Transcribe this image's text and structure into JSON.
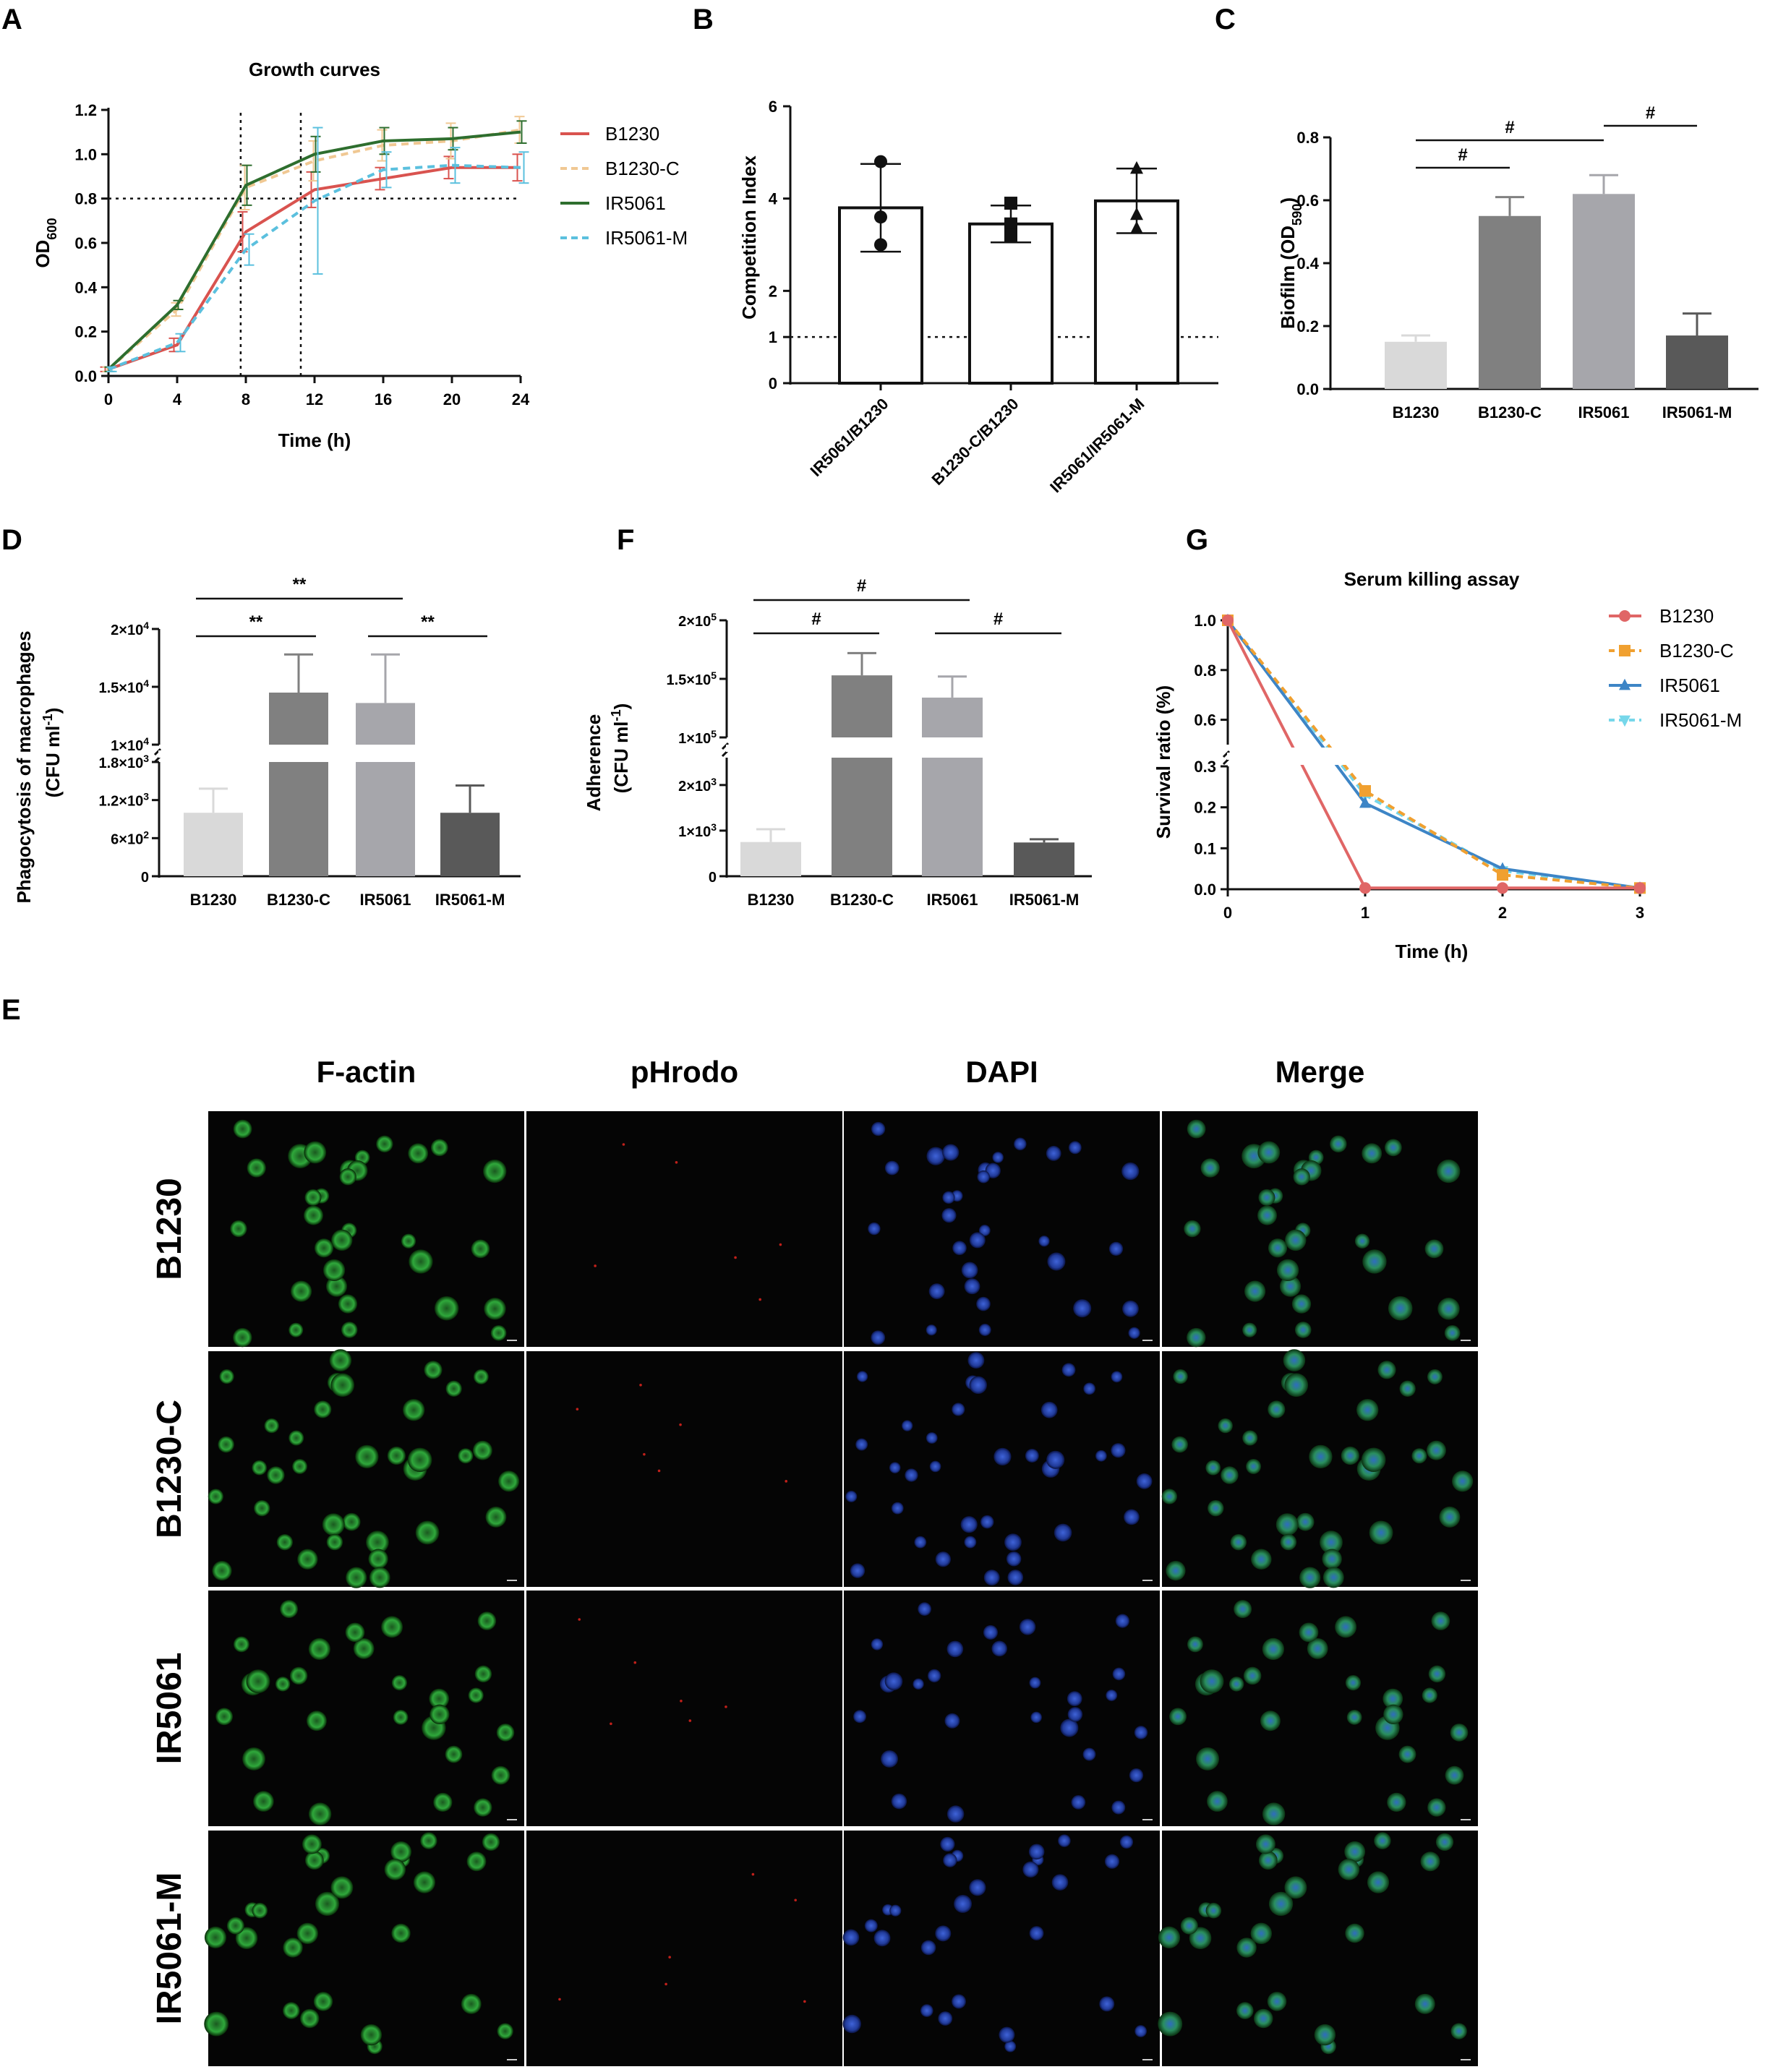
{
  "panels": {
    "A": {
      "label": "A"
    },
    "B": {
      "label": "B"
    },
    "C": {
      "label": "C"
    },
    "D": {
      "label": "D"
    },
    "E": {
      "label": "E"
    },
    "F": {
      "label": "F"
    },
    "G": {
      "label": "G"
    }
  },
  "colors": {
    "B1230": "#d9534f",
    "B1230-C": "#f0c893",
    "IR5061": "#2e6e2e",
    "IR5061-M": "#5bc0de",
    "serum_B1230": "#e06666",
    "serum_B1230-C": "#f0a030",
    "serum_IR5061": "#3d85c6",
    "serum_IR5061-M": "#76d7ea",
    "bar_B1230": "#d9d9d9",
    "bar_B1230-C": "#808080",
    "bar_IR5061": "#a6a6ab",
    "bar_IR5061-M": "#595959"
  },
  "chart_data": [
    {
      "id": "A",
      "type": "line",
      "title": "Growth curves",
      "xlabel": "Time (h)",
      "ylabel": "OD",
      "ylabel_sub": "600",
      "xlim": [
        0,
        24
      ],
      "ylim": [
        0,
        1.2
      ],
      "xticks": [
        "0",
        "4",
        "8",
        "12",
        "16",
        "20",
        "24"
      ],
      "yticks": [
        "0.0",
        "0.2",
        "0.4",
        "0.6",
        "0.8",
        "1.0",
        "1.2"
      ],
      "reference_lines": {
        "y": 0.8,
        "x": [
          7.7,
          11.2
        ]
      },
      "legend_position": "right",
      "x": [
        0,
        4,
        8,
        12,
        16,
        20,
        24
      ],
      "series": [
        {
          "name": "B1230",
          "values": [
            0.03,
            0.14,
            0.65,
            0.84,
            0.89,
            0.94,
            0.94
          ],
          "err": [
            0.01,
            0.03,
            0.09,
            0.08,
            0.05,
            0.05,
            0.06
          ]
        },
        {
          "name": "B1230-C",
          "values": [
            0.03,
            0.3,
            0.85,
            0.97,
            1.04,
            1.06,
            1.11
          ],
          "err": [
            0.01,
            0.03,
            0.1,
            0.09,
            0.07,
            0.08,
            0.06
          ]
        },
        {
          "name": "IR5061",
          "values": [
            0.03,
            0.32,
            0.86,
            1.0,
            1.06,
            1.07,
            1.1
          ],
          "err": [
            0.01,
            0.02,
            0.09,
            0.08,
            0.06,
            0.05,
            0.05
          ]
        },
        {
          "name": "IR5061-M",
          "values": [
            0.03,
            0.15,
            0.57,
            0.79,
            0.93,
            0.95,
            0.94
          ],
          "err": [
            0.01,
            0.04,
            0.07,
            0.33,
            0.08,
            0.08,
            0.07
          ]
        }
      ]
    },
    {
      "id": "B",
      "type": "bar",
      "ylabel": "Competition Index",
      "categories": [
        "IR5061/B1230",
        "B1230-C/B1230",
        "IR5061/IR5061-M"
      ],
      "values": [
        3.8,
        3.45,
        3.95
      ],
      "err": [
        0.95,
        0.4,
        0.7
      ],
      "points": [
        [
          4.8,
          3.0,
          3.6
        ],
        [
          3.9,
          3.45,
          3.2
        ],
        [
          4.65,
          3.65,
          3.35
        ]
      ],
      "markers": [
        "circle",
        "square",
        "triangle"
      ],
      "yticks": [
        "0",
        "1",
        "2",
        "4",
        "6"
      ],
      "reference_lines": {
        "y": 1
      },
      "ylim": [
        0,
        6
      ]
    },
    {
      "id": "C",
      "type": "bar",
      "ylabel": "Biofilm (OD",
      "ylabel_sub": "590",
      "ylabel_close": ")",
      "categories": [
        "B1230",
        "B1230-C",
        "IR5061",
        "IR5061-M"
      ],
      "values": [
        0.15,
        0.55,
        0.62,
        0.17
      ],
      "err": [
        0.02,
        0.06,
        0.06,
        0.07
      ],
      "yticks": [
        "0.0",
        "0.2",
        "0.4",
        "0.6",
        "0.8"
      ],
      "ylim": [
        0,
        0.8
      ],
      "significance": [
        {
          "from": 0,
          "to": 1,
          "label": "#"
        },
        {
          "from": 0,
          "to": 2,
          "label": "#"
        },
        {
          "from": 2,
          "to": 3,
          "label": "#"
        }
      ]
    },
    {
      "id": "D",
      "type": "bar",
      "ylabel": "Phagocytosis of macrophages",
      "ylabel2": "(CFU ml",
      "ylabel2_sup": "-1",
      "ylabel2_close": ")",
      "categories": [
        "B1230",
        "B1230-C",
        "IR5061",
        "IR5061-M"
      ],
      "values": [
        1000,
        14500,
        13600,
        1000
      ],
      "err": [
        380,
        3300,
        4200,
        430
      ],
      "broken_axis": {
        "lower": [
          0,
          1800
        ],
        "upper": [
          10000,
          20000
        ]
      },
      "yticks_lower": [
        "0",
        "6×10",
        "1.2×10",
        "1.8×10"
      ],
      "yticks_lower_exp": [
        "",
        "2",
        "3",
        "3"
      ],
      "yticks_upper": [
        "1×10",
        "1.5×10",
        "2×10"
      ],
      "yticks_upper_exp": [
        "4",
        "4",
        "4"
      ],
      "significance": [
        {
          "from": 0,
          "to": 1,
          "label": "**"
        },
        {
          "from": 0,
          "to": 2,
          "label": "**"
        },
        {
          "from": 2,
          "to": 3,
          "label": "**"
        }
      ]
    },
    {
      "id": "F",
      "type": "bar",
      "ylabel": "Adherence",
      "ylabel2": "(CFU ml",
      "ylabel2_sup": "-1",
      "ylabel2_close": ")",
      "categories": [
        "B1230",
        "B1230-C",
        "IR5061",
        "IR5061-M"
      ],
      "values": [
        750,
        153000,
        134000,
        740
      ],
      "err": [
        280,
        19000,
        18000,
        70
      ],
      "broken_axis": {
        "lower": [
          0,
          2600
        ],
        "upper": [
          100000,
          200000
        ]
      },
      "yticks_lower": [
        "0",
        "1×10",
        "2×10"
      ],
      "yticks_lower_exp": [
        "",
        "3",
        "3"
      ],
      "yticks_upper": [
        "1×10",
        "1.5×10",
        "2×10"
      ],
      "yticks_upper_exp": [
        "5",
        "5",
        "5"
      ],
      "significance": [
        {
          "from": 0,
          "to": 1,
          "label": "#"
        },
        {
          "from": 0,
          "to": 2,
          "label": "#"
        },
        {
          "from": 2,
          "to": 3,
          "label": "#"
        }
      ]
    },
    {
      "id": "G",
      "type": "line",
      "title": "Serum killing assay",
      "xlabel": "Time (h)",
      "ylabel": "Survival ratio (%)",
      "x": [
        0,
        1,
        2,
        3
      ],
      "xticks": [
        "0",
        "1",
        "2",
        "3"
      ],
      "broken_axis": {
        "lower": [
          0,
          0.3
        ],
        "upper": [
          0.5,
          1.0
        ]
      },
      "yticks_lower": [
        "0.0",
        "0.1",
        "0.2",
        "0.3"
      ],
      "yticks_upper": [
        "0.6",
        "0.8",
        "1.0"
      ],
      "legend_position": "top-right",
      "series": [
        {
          "name": "B1230",
          "values": [
            1.0,
            0.003,
            0.003,
            0.003
          ],
          "marker": "circle"
        },
        {
          "name": "B1230-C",
          "values": [
            1.0,
            0.24,
            0.035,
            0.003
          ],
          "marker": "square"
        },
        {
          "name": "IR5061",
          "values": [
            1.0,
            0.21,
            0.05,
            0.003
          ],
          "marker": "triangle"
        },
        {
          "name": "IR5061-M",
          "values": [
            1.0,
            0.23,
            0.045,
            0.003
          ],
          "marker": "triangle-down"
        }
      ]
    }
  ],
  "microscopy": {
    "columns": [
      "F-actin",
      "pHrodo",
      "DAPI",
      "Merge"
    ],
    "rows": [
      "B1230",
      "B1230-C",
      "IR5061",
      "IR5061-M"
    ]
  }
}
